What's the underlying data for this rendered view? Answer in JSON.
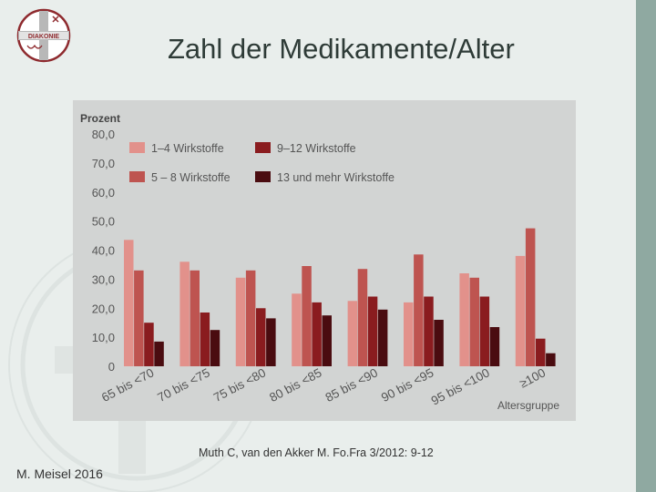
{
  "slide": {
    "title": "Zahl der Medikamente/Alter",
    "citation": "Muth C, van den Akker M. Fo.Fra 3/2012: 9-12",
    "author": "M. Meisel 2016",
    "logo_text": "DIAKONIE"
  },
  "colors": {
    "background": "#e9eeec",
    "accent_bar": "#8fa9a1",
    "chart_panel": "#d2d4d3"
  },
  "chart_data": {
    "type": "bar",
    "title": "",
    "ylabel": "Prozent",
    "xlabel": "Altersgruppe",
    "ylim": [
      0,
      80
    ],
    "yticks": [
      "80,0",
      "70,0",
      "60,0",
      "50,0",
      "40,0",
      "30,0",
      "20,0",
      "10,0",
      "0"
    ],
    "grid": false,
    "legend_position": "top",
    "categories": [
      "65 bis <70",
      "70 bis <75",
      "75 bis <80",
      "80 bis <85",
      "85 bis <90",
      "90 bis <95",
      "95 bis <100",
      "≥100"
    ],
    "series": [
      {
        "name": "1–4 Wirkstoffe",
        "color": "#e2918b",
        "values": [
          43.5,
          36,
          30.5,
          25,
          22.5,
          22,
          32,
          38
        ]
      },
      {
        "name": "5 – 8 Wirkstoffe",
        "color": "#be5450",
        "values": [
          33,
          33,
          33,
          34.5,
          33.5,
          38.5,
          30.5,
          47.5
        ]
      },
      {
        "name": "9–12 Wirkstoffe",
        "color": "#8a1c1f",
        "values": [
          15,
          18.5,
          20,
          22,
          24,
          24,
          24,
          9.5
        ]
      },
      {
        "name": "13 und mehr Wirkstoffe",
        "color": "#4a0c10",
        "values": [
          8.5,
          12.5,
          16.5,
          17.5,
          19.5,
          16,
          13.5,
          4.5
        ]
      }
    ]
  }
}
